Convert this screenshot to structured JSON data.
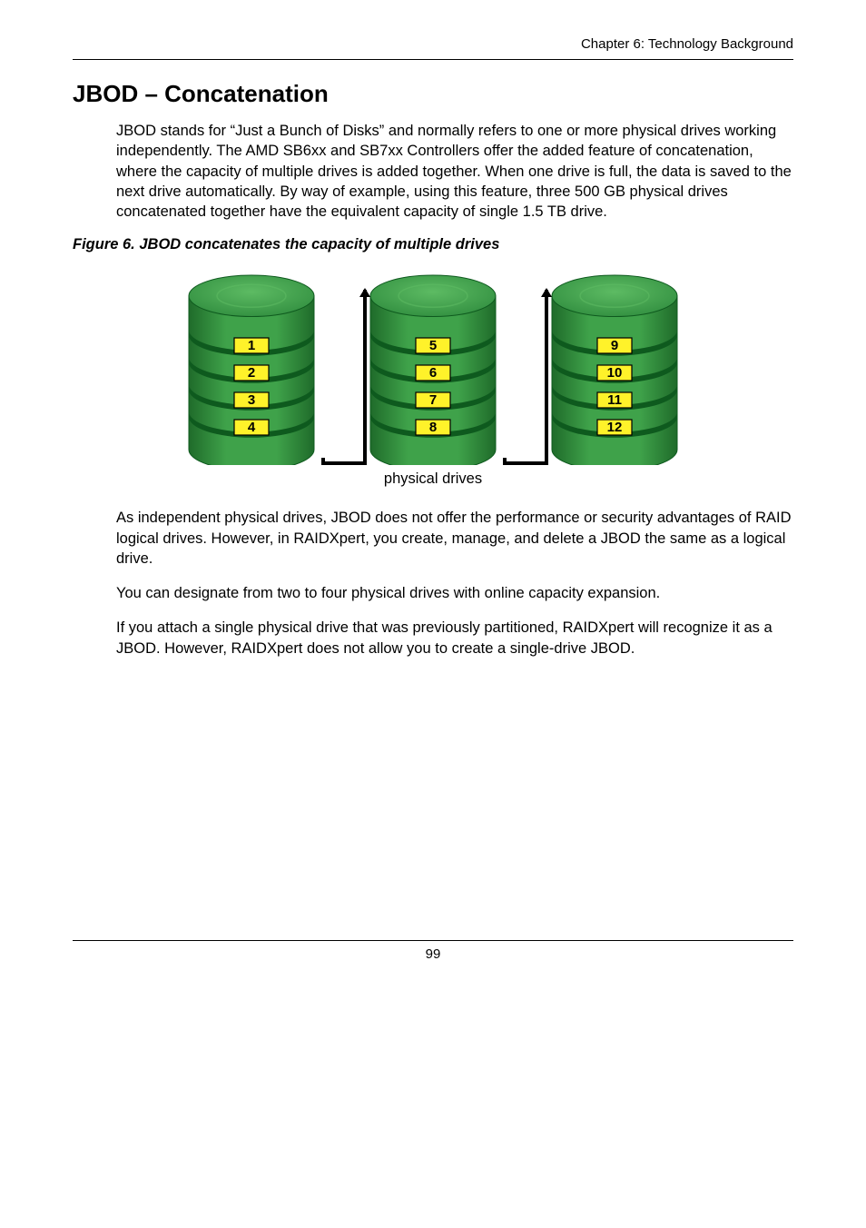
{
  "page": {
    "header": "Chapter 6: Technology Background",
    "title": "JBOD – Concatenation",
    "intro": "JBOD stands for “Just a Bunch of Disks” and normally refers to one or more physical drives working independently. The AMD SB6xx and SB7xx Controllers offer the added feature of concatenation, where the capacity of multiple drives is added together. When one drive is full, the data is saved to the next drive automatically. By way of example, using this feature, three 500 GB physical drives concatenated together have the equivalent capacity of single 1.5 TB drive.",
    "figure_caption": "Figure 6.   JBOD concatenates the capacity of multiple drives",
    "physical_label": "physical drives",
    "para2": "As independent physical drives, JBOD does not offer the performance or security advantages of RAID logical drives. However, in RAIDXpert, you create, manage, and delete a JBOD the same as a logical drive.",
    "para3": "You can designate from two to four physical drives with online capacity expansion.",
    "para4": "If you attach a single physical drive that was previously partitioned, RAIDXpert will recognize it as a JBOD. However, RAIDXpert does not allow you to create a single-drive JBOD.",
    "page_number": "99"
  },
  "figure": {
    "type": "infographic",
    "drives": [
      {
        "labels": [
          "1",
          "2",
          "3",
          "4"
        ]
      },
      {
        "labels": [
          "5",
          "6",
          "7",
          "8"
        ]
      },
      {
        "labels": [
          "9",
          "10",
          "11",
          "12"
        ]
      }
    ],
    "colors": {
      "disk_top_light": "#5dbb63",
      "disk_top_dark": "#2e8b3d",
      "disk_side_light": "#3fa24a",
      "disk_side_dark": "#1f6b2a",
      "band_dark": "#0e5a1e",
      "label_fill": "#fff22a",
      "label_stroke": "#000000",
      "label_text": "#000000",
      "connector": "#000000",
      "background": "#ffffff"
    },
    "drive_width": 150,
    "drive_svg_height": 215,
    "label_fontsize": 15,
    "spacing": 30
  }
}
